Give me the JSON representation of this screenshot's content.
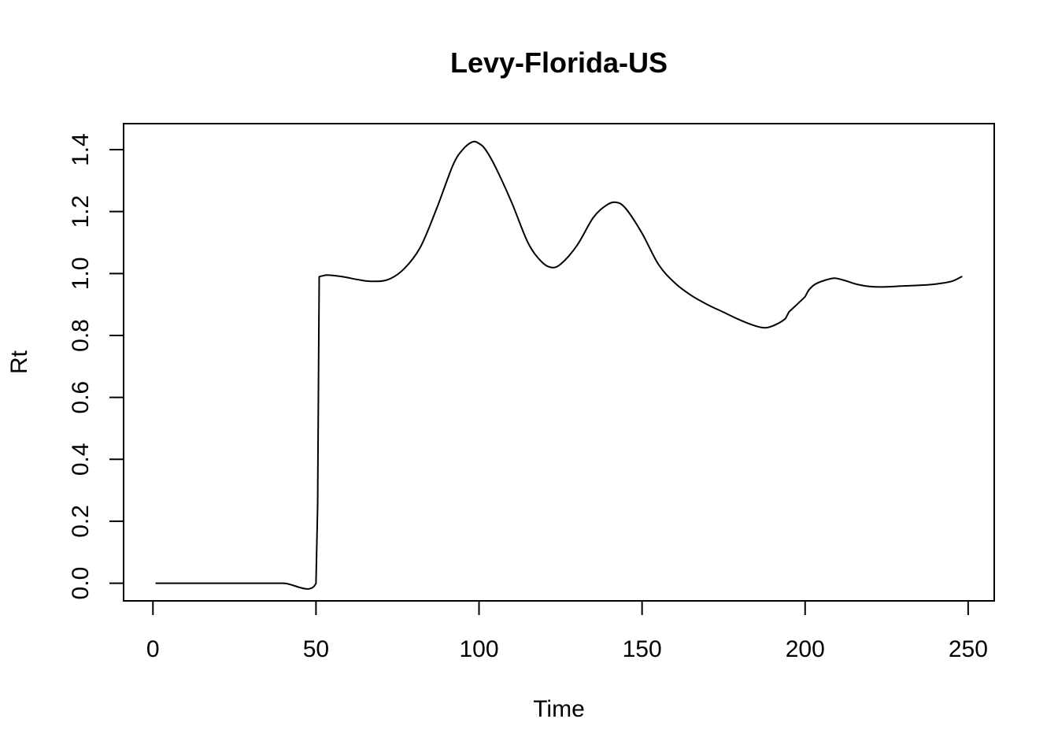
{
  "chart_data": {
    "type": "line",
    "title": "Levy-Florida-US",
    "xlabel": "Time",
    "ylabel": "Rt",
    "xlim": [
      -9,
      258
    ],
    "ylim": [
      -0.057,
      1.484
    ],
    "xticks": [
      0,
      50,
      100,
      150,
      200,
      250
    ],
    "yticks": [
      0.0,
      0.2,
      0.4,
      0.6,
      0.8,
      1.0,
      1.2,
      1.4
    ],
    "xtick_labels": [
      "0",
      "50",
      "100",
      "150",
      "200",
      "250"
    ],
    "ytick_labels": [
      "0.0",
      "0.2",
      "0.4",
      "0.6",
      "0.8",
      "1.0",
      "1.2",
      "1.4"
    ],
    "grid": false,
    "legend": "none",
    "line_color": "#000000",
    "x": [
      1,
      10,
      20,
      30,
      40,
      50,
      50.5,
      51,
      53,
      58,
      63,
      67,
      72,
      77,
      82,
      87,
      92,
      95,
      98,
      100,
      102,
      105,
      110,
      115,
      119,
      122,
      125,
      130,
      135,
      139,
      142,
      145,
      150,
      155,
      160,
      165,
      170,
      175,
      180,
      185,
      188,
      191,
      194,
      195,
      197,
      199,
      200,
      201,
      203,
      206,
      209,
      212,
      216,
      220,
      225,
      230,
      235,
      240,
      245,
      248
    ],
    "values": [
      0,
      0,
      0,
      0,
      0,
      0,
      0.25,
      0.99,
      0.995,
      0.99,
      0.98,
      0.975,
      0.98,
      1.015,
      1.085,
      1.21,
      1.35,
      1.4,
      1.425,
      1.42,
      1.4,
      1.345,
      1.23,
      1.1,
      1.04,
      1.02,
      1.03,
      1.09,
      1.18,
      1.22,
      1.23,
      1.21,
      1.13,
      1.03,
      0.97,
      0.93,
      0.9,
      0.875,
      0.85,
      0.83,
      0.825,
      0.835,
      0.855,
      0.875,
      0.895,
      0.915,
      0.925,
      0.945,
      0.965,
      0.978,
      0.985,
      0.978,
      0.965,
      0.958,
      0.957,
      0.96,
      0.962,
      0.966,
      0.975,
      0.99
    ]
  }
}
